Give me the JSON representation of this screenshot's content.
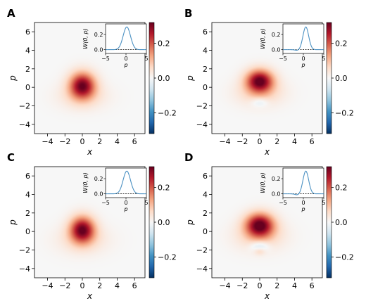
{
  "chart_data": [
    {
      "panel": "A",
      "type": "heatmap",
      "xlabel": "x",
      "ylabel": "p",
      "xticks": [
        -4,
        -2,
        0,
        2,
        4,
        6
      ],
      "yticks": [
        -4,
        -2,
        0,
        2,
        4,
        6
      ],
      "xlim": [
        -5.5,
        7.2
      ],
      "ylim": [
        -5,
        7
      ],
      "cmap": "RdBu_r",
      "clim": [
        -0.32,
        0.32
      ],
      "colorbar_ticks": [
        "0.2",
        "0.0",
        "−0.2"
      ],
      "colorbar_tick_values": [
        0.2,
        0.0,
        -0.2
      ],
      "blobs": [
        {
          "x": 0,
          "y": 0.2,
          "sx": 1.05,
          "sy": 1.0,
          "amp": 0.3
        },
        {
          "x": 0,
          "y": -1.0,
          "sx": 2.0,
          "sy": 1.0,
          "amp": 0.05
        }
      ],
      "inset": {
        "type": "line",
        "xlabel": "p",
        "ylabel": "W(0, p)",
        "xticks": [
          "−5",
          "0",
          "5"
        ],
        "xtick_values": [
          -5,
          0,
          5
        ],
        "yticks": [
          "0.0",
          "0.2"
        ],
        "ytick_values": [
          0.0,
          0.2
        ],
        "xlim": [
          -5,
          5
        ],
        "ylim": [
          -0.05,
          0.34
        ],
        "peak": 0.3,
        "center": 0.2,
        "width": 0.9,
        "neg_dip": 0.0
      }
    },
    {
      "panel": "B",
      "type": "heatmap",
      "xlabel": "x",
      "ylabel": "p",
      "xticks": [
        -4,
        -2,
        0,
        2,
        4,
        6
      ],
      "yticks": [
        -4,
        -2,
        0,
        2,
        4,
        6
      ],
      "xlim": [
        -5.5,
        7.2
      ],
      "ylim": [
        -5,
        7
      ],
      "cmap": "RdBu_r",
      "clim": [
        -0.32,
        0.32
      ],
      "colorbar_ticks": [
        "0.2",
        "0.0",
        "−0.2"
      ],
      "colorbar_tick_values": [
        0.2,
        0.0,
        -0.2
      ],
      "blobs": [
        {
          "x": 0,
          "y": 0.7,
          "sx": 1.1,
          "sy": 0.85,
          "amp": 0.31
        },
        {
          "x": 0,
          "y": -0.6,
          "sx": 1.9,
          "sy": 1.0,
          "amp": 0.07
        },
        {
          "x": 0,
          "y": -1.6,
          "sx": 0.7,
          "sy": 0.35,
          "amp": -0.06
        }
      ],
      "inset": {
        "type": "line",
        "xlabel": "p",
        "ylabel": "W(0, p)",
        "xticks": [
          "−5",
          "0",
          "5"
        ],
        "xtick_values": [
          -5,
          0,
          5
        ],
        "yticks": [
          "0.0",
          "0.2"
        ],
        "ytick_values": [
          0.0,
          0.2
        ],
        "xlim": [
          -5,
          5
        ],
        "ylim": [
          -0.05,
          0.34
        ],
        "peak": 0.3,
        "center": 0.6,
        "width": 0.7,
        "neg_dip": 0.01
      }
    },
    {
      "panel": "C",
      "type": "heatmap",
      "xlabel": "x",
      "ylabel": "p",
      "xticks": [
        -4,
        -2,
        0,
        2,
        4,
        6
      ],
      "yticks": [
        -4,
        -2,
        0,
        2,
        4,
        6
      ],
      "xlim": [
        -5.5,
        7.2
      ],
      "ylim": [
        -5,
        7
      ],
      "cmap": "RdBu_r",
      "clim": [
        -0.32,
        0.32
      ],
      "colorbar_ticks": [
        "0.2",
        "0.0",
        "−0.2"
      ],
      "colorbar_tick_values": [
        0.2,
        0.0,
        -0.2
      ],
      "blobs": [
        {
          "x": 0,
          "y": 0.2,
          "sx": 1.0,
          "sy": 1.0,
          "amp": 0.3
        },
        {
          "x": 0,
          "y": -0.9,
          "sx": 2.1,
          "sy": 1.1,
          "amp": 0.05
        }
      ],
      "inset": {
        "type": "line",
        "xlabel": "p",
        "ylabel": "W(0, p)",
        "xticks": [
          "−5",
          "0",
          "5"
        ],
        "xtick_values": [
          -5,
          0,
          5
        ],
        "yticks": [
          "0.0",
          "0.2"
        ],
        "ytick_values": [
          0.0,
          0.2
        ],
        "xlim": [
          -5,
          5
        ],
        "ylim": [
          -0.05,
          0.34
        ],
        "peak": 0.3,
        "center": 0.2,
        "width": 0.9,
        "neg_dip": 0.0
      }
    },
    {
      "panel": "D",
      "type": "heatmap",
      "xlabel": "x",
      "ylabel": "p",
      "xticks": [
        -4,
        -2,
        0,
        2,
        4,
        6
      ],
      "yticks": [
        -4,
        -2,
        0,
        2,
        4,
        6
      ],
      "xlim": [
        -5.5,
        7.2
      ],
      "ylim": [
        -5,
        7
      ],
      "cmap": "RdBu_r",
      "clim": [
        -0.32,
        0.32
      ],
      "colorbar_ticks": [
        "0.2",
        "0.0",
        "−0.2"
      ],
      "colorbar_tick_values": [
        0.2,
        0.0,
        -0.2
      ],
      "blobs": [
        {
          "x": 0,
          "y": 0.7,
          "sx": 1.15,
          "sy": 0.9,
          "amp": 0.31
        },
        {
          "x": 0,
          "y": -0.5,
          "sx": 2.0,
          "sy": 1.1,
          "amp": 0.07
        },
        {
          "x": 0,
          "y": -1.6,
          "sx": 0.75,
          "sy": 0.4,
          "amp": -0.09
        },
        {
          "x": 0,
          "y": -2.1,
          "sx": 0.45,
          "sy": 0.3,
          "amp": 0.06
        }
      ],
      "inset": {
        "type": "line",
        "xlabel": "p",
        "ylabel": "W(0, p)",
        "xticks": [
          "−5",
          "0",
          "5"
        ],
        "xtick_values": [
          -5,
          0,
          5
        ],
        "yticks": [
          "0.0",
          "0.2"
        ],
        "ytick_values": [
          0.0,
          0.2
        ],
        "xlim": [
          -5,
          5
        ],
        "ylim": [
          -0.05,
          0.34
        ],
        "peak": 0.3,
        "center": 0.6,
        "width": 0.7,
        "neg_dip": 0.015
      }
    }
  ]
}
